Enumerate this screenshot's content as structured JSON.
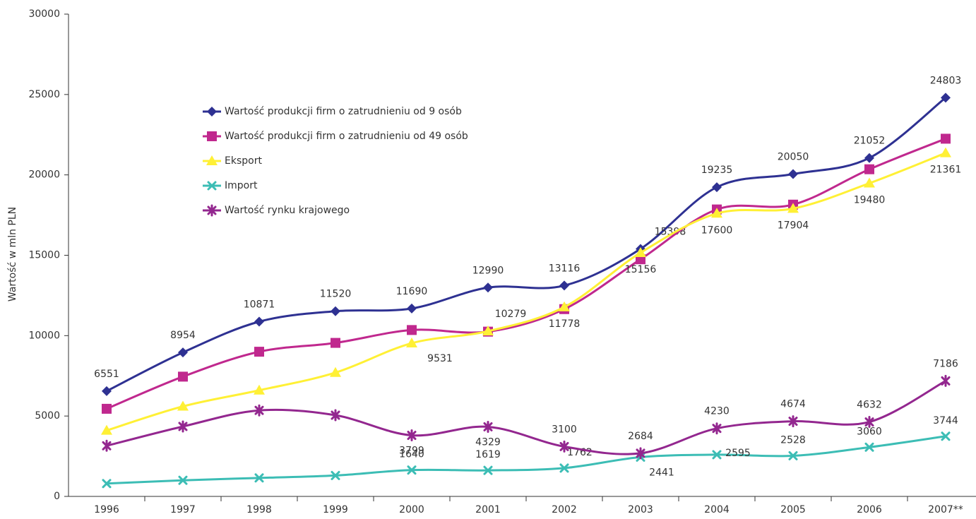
{
  "chart_data": {
    "type": "line",
    "y_label": "Wartość w mln PLN",
    "categories": [
      "1996",
      "1997",
      "1998",
      "1999",
      "2000",
      "2001",
      "2002",
      "2003",
      "2004",
      "2005",
      "2006",
      "2007**"
    ],
    "ylim": [
      0,
      30000
    ],
    "yticks": [
      0,
      5000,
      10000,
      15000,
      20000,
      25000,
      30000
    ],
    "legend": "upper left",
    "series": [
      {
        "name": "Wartość produkcji firm o zatrudnieniu od 9 osób",
        "color": "#2e3192",
        "marker": "diamond",
        "values": [
          6551,
          8954,
          10871,
          11520,
          11690,
          12990,
          13116,
          15398,
          19235,
          20050,
          21052,
          24803
        ],
        "value_labels": [
          "6551",
          "8954",
          "10871",
          "11520",
          "11690",
          "12990",
          "13116",
          "15398",
          "19235",
          "20050",
          "21052",
          "24803"
        ]
      },
      {
        "name": "Wartość produkcji firm o zatrudnieniu od 49 osób",
        "color": "#c0288e",
        "marker": "square",
        "values": [
          5450,
          7450,
          9000,
          9550,
          10350,
          10250,
          11650,
          14750,
          17850,
          18150,
          20350,
          22250
        ]
      },
      {
        "name": "Eksport",
        "color": "#fff035",
        "marker": "triangle",
        "values": [
          4100,
          5600,
          6600,
          7700,
          9531,
          10279,
          11778,
          15156,
          17600,
          17904,
          19480,
          21361
        ],
        "value_labels": [
          null,
          null,
          null,
          null,
          "9531",
          "10279",
          "11778",
          "15156",
          "17600",
          "17904",
          "19480",
          "21361"
        ]
      },
      {
        "name": "Import",
        "color": "#3cbdb5",
        "marker": "x",
        "values": [
          800,
          1000,
          1150,
          1300,
          1640,
          1619,
          1762,
          2441,
          2595,
          2528,
          3060,
          3744
        ],
        "value_labels": [
          null,
          null,
          null,
          null,
          "1640",
          "1619",
          "1762",
          "2441",
          "2595",
          "2528",
          "3060",
          "3744"
        ]
      },
      {
        "name": "Wartość rynku krajowego",
        "color": "#93278f",
        "marker": "asterisk",
        "values": [
          3150,
          4350,
          5350,
          5050,
          3799,
          4329,
          3100,
          2684,
          4230,
          4674,
          4632,
          7186
        ],
        "value_labels": [
          null,
          null,
          null,
          null,
          "3799",
          "4329",
          "3100",
          "2684",
          "4230",
          "4674",
          "4632",
          "7186"
        ]
      }
    ]
  }
}
